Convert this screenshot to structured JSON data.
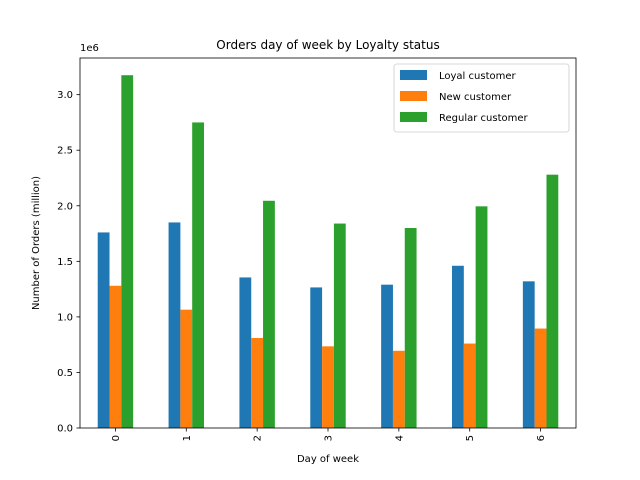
{
  "chart_data": {
    "type": "bar",
    "title": "Orders day of week by Loyalty status",
    "xlabel": "Day of week",
    "ylabel": "Number of Orders (million)",
    "offset_label": "1e6",
    "categories": [
      "0",
      "1",
      "2",
      "3",
      "4",
      "5",
      "6"
    ],
    "series": [
      {
        "name": "Loyal customer",
        "color": "#1f77b4",
        "values": [
          1760000,
          1850000,
          1355000,
          1265000,
          1290000,
          1460000,
          1320000
        ]
      },
      {
        "name": "New customer",
        "color": "#ff7f0e",
        "values": [
          1280000,
          1065000,
          810000,
          735000,
          695000,
          760000,
          895000
        ]
      },
      {
        "name": "Regular customer",
        "color": "#2ca02c",
        "values": [
          3175000,
          2750000,
          2045000,
          1840000,
          1800000,
          1995000,
          2280000
        ]
      }
    ],
    "ylim": [
      0,
      3330000
    ],
    "yticks": [
      0,
      500000,
      1000000,
      1500000,
      2000000,
      2500000,
      3000000
    ],
    "ytick_labels": [
      "0.0",
      "0.5",
      "1.0",
      "1.5",
      "2.0",
      "2.5",
      "3.0"
    ],
    "grid": false,
    "legend_position": "top-right"
  }
}
